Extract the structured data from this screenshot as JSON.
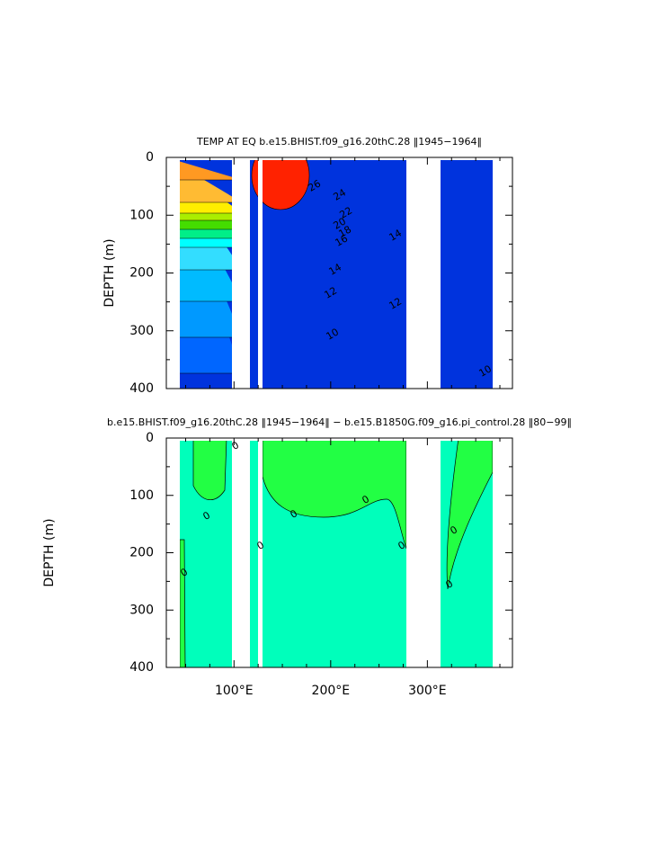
{
  "chart_data": [
    {
      "type": "contour",
      "title": "TEMP AT EQ  b.e15.BHIST.f09_g16.20thC.28  ‖1945−1964‖",
      "y_label": "DEPTH (m)",
      "xlim": [
        30,
        388
      ],
      "ylim": [
        400,
        0
      ],
      "xticks": [
        {
          "value": 100,
          "label": ""
        },
        {
          "value": 200,
          "label": ""
        },
        {
          "value": 300,
          "label": ""
        }
      ],
      "xminorticks": [
        50,
        75,
        125,
        150,
        175,
        225,
        250,
        275,
        325,
        350,
        375
      ],
      "yticks": [
        0,
        100,
        200,
        300,
        400
      ],
      "yminorticks": [
        50,
        150,
        250,
        350
      ],
      "contour_labels": [
        "26",
        "24",
        "22",
        "20",
        "18",
        "16",
        "14",
        "12",
        "10",
        "14",
        "12",
        "10"
      ]
    },
    {
      "type": "contour",
      "title": "b.e15.BHIST.f09_g16.20thC.28  ‖1945−1964‖  −  b.e15.B1850G.f09_g16.pi_control.28  ‖80−99‖",
      "y_label": "DEPTH (m)",
      "xlim": [
        30,
        388
      ],
      "ylim": [
        400,
        0
      ],
      "xticks": [
        {
          "value": 100,
          "label": "100°E"
        },
        {
          "value": 200,
          "label": "200°E"
        },
        {
          "value": 300,
          "label": "300°E"
        }
      ],
      "xminorticks": [
        50,
        75,
        125,
        150,
        175,
        225,
        250,
        275,
        325,
        350,
        375
      ],
      "yticks": [
        0,
        100,
        200,
        300,
        400
      ],
      "yminorticks": [
        50,
        150,
        250,
        350
      ],
      "contour_labels": [
        "0",
        "0",
        "0",
        "0",
        "0",
        "0",
        "0",
        "0",
        "0"
      ]
    }
  ]
}
